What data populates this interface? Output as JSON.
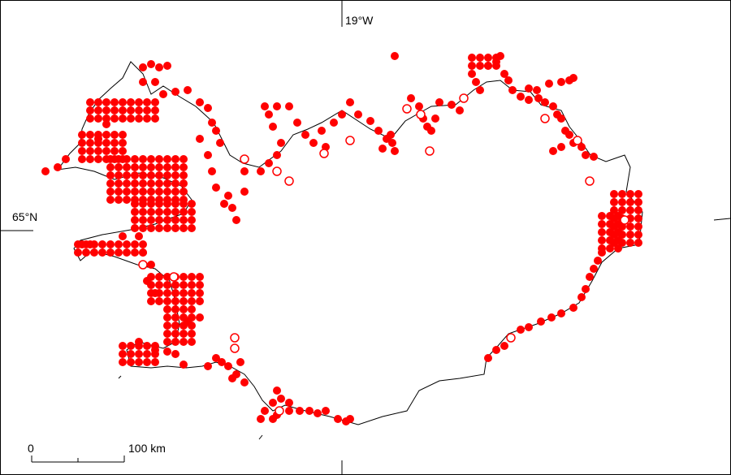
{
  "map": {
    "longitude_label": "19°W",
    "latitude_label": "65°N",
    "colors": {
      "point": "#ff0000",
      "coastline": "#000000",
      "frame": "#000000"
    }
  },
  "scale_bar": {
    "zero_label": "0",
    "length_label": "100 km"
  },
  "legend_items": [
    {
      "symbol": "filled-red-circle",
      "meaning": ""
    },
    {
      "symbol": "open-red-circle",
      "meaning": ""
    }
  ]
}
